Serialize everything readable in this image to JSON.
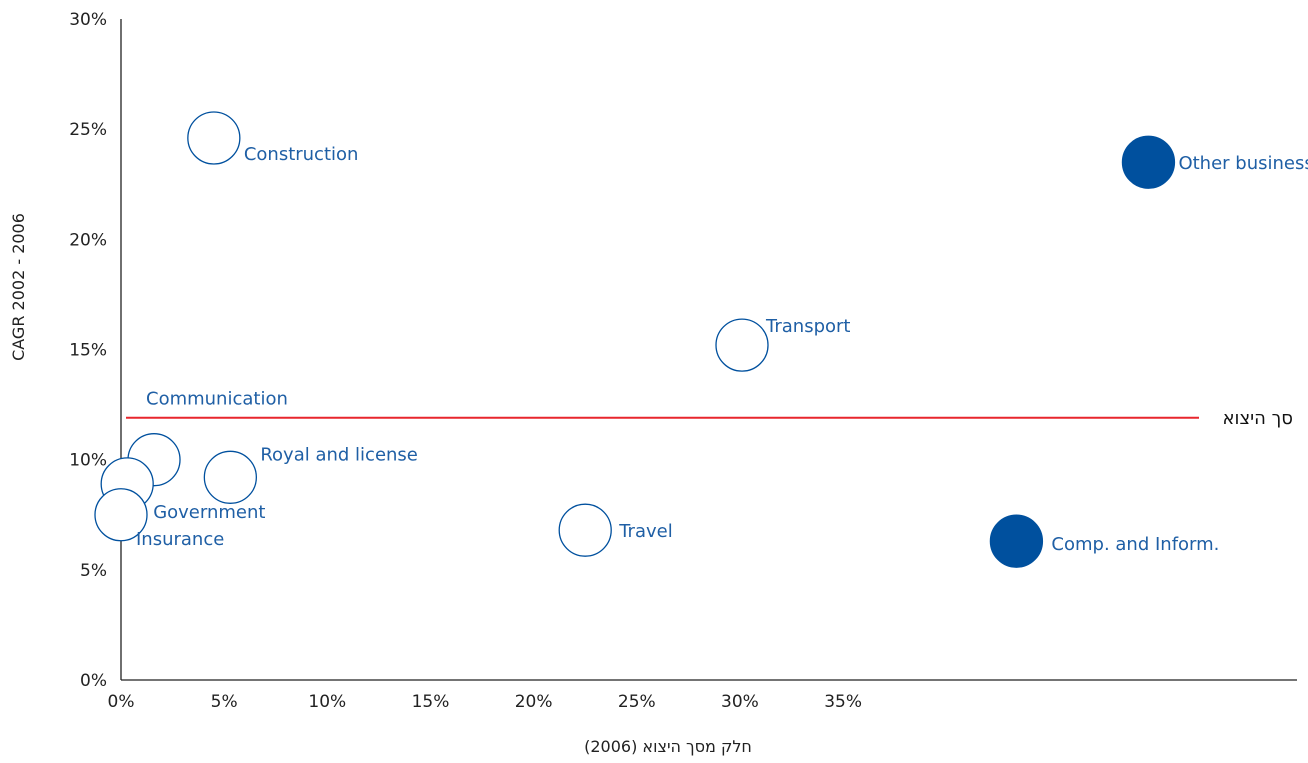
{
  "chart_data": {
    "type": "scatter",
    "title": "",
    "xlabel": "חלק מסך היצוא (2006)",
    "ylabel": "CAGR 2002 - 2006",
    "x_ticks": [
      "0%",
      "5%",
      "10%",
      "15%",
      "20%",
      "25%",
      "30%",
      "35%"
    ],
    "y_ticks": [
      "0%",
      "5%",
      "10%",
      "15%",
      "20%",
      "25%",
      "30%"
    ],
    "xlim": [
      0,
      57
    ],
    "ylim": [
      0,
      30
    ],
    "grid": false,
    "reference_line": {
      "label": "סך היצוא",
      "y": 11.9
    },
    "points": [
      {
        "label": "Construction",
        "x": 4.5,
        "y": 24.6,
        "filled": false
      },
      {
        "label": "Other business",
        "x": 49.8,
        "y": 23.5,
        "filled": true
      },
      {
        "label": "Transport",
        "x": 30.1,
        "y": 15.2,
        "filled": false
      },
      {
        "label": "Communication",
        "x": 1.6,
        "y": 10.0,
        "filled": false
      },
      {
        "label": "Royal and license",
        "x": 5.3,
        "y": 9.2,
        "filled": false
      },
      {
        "label": "Government",
        "x": 0.3,
        "y": 8.9,
        "filled": false
      },
      {
        "label": "Insurance",
        "x": 0.0,
        "y": 7.5,
        "filled": false
      },
      {
        "label": "Travel",
        "x": 22.5,
        "y": 6.8,
        "filled": false
      },
      {
        "label": "Comp. and Inform.",
        "x": 43.4,
        "y": 6.3,
        "filled": true
      }
    ]
  },
  "colors": {
    "bubble": "#00509e",
    "label": "#1f5fa5",
    "axis": "#222222",
    "reference": "#e8262d"
  }
}
